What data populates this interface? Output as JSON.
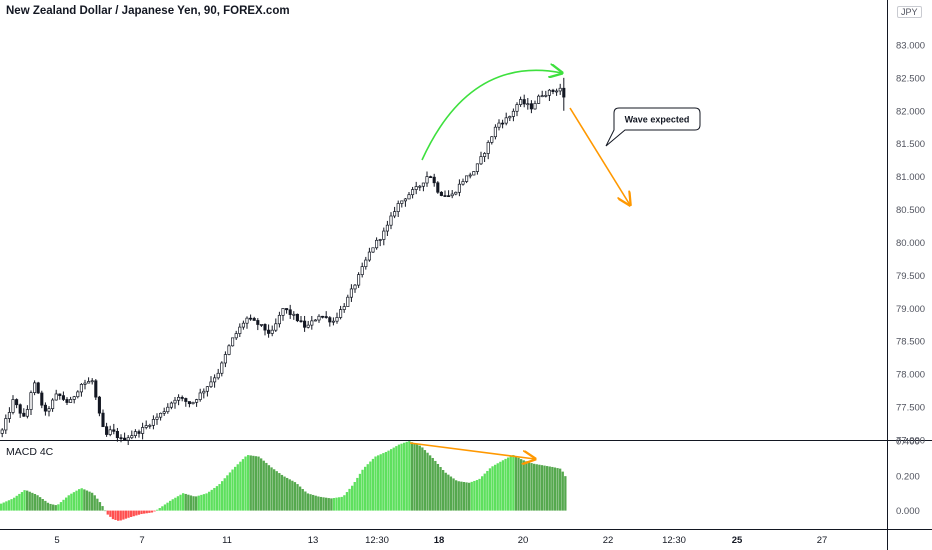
{
  "title": "New Zealand Dollar / Japanese Yen, 90, FOREX.com",
  "currency_badge": "JPY",
  "annotation": "Wave expected",
  "indicator_label": "MACD 4C",
  "colors": {
    "candle": "#131722",
    "macd_up_strong": "#5ee05e",
    "macd_up_weak": "#55a84e",
    "macd_down": "#ff5050",
    "curve_arrow": "#3ee03e",
    "orange": "#ff9800",
    "separator": "#131722"
  },
  "chart_data": [
    {
      "type": "candlestick",
      "title": "New Zealand Dollar / Japanese Yen, 90, FOREX.com",
      "y_ticks": [
        "83.000",
        "82.500",
        "82.000",
        "81.500",
        "81.000",
        "80.500",
        "80.000",
        "79.500",
        "79.000",
        "78.500",
        "78.000",
        "77.500",
        "77.000"
      ],
      "x_ticks": [
        "5",
        "7",
        "11",
        "13",
        "12:30",
        "18",
        "20",
        "22",
        "12:30",
        "25",
        "27"
      ],
      "ylim": [
        77.0,
        83.5
      ],
      "path": [
        [
          0,
          77.1
        ],
        [
          12,
          77.6
        ],
        [
          24,
          77.3
        ],
        [
          32,
          77.9
        ],
        [
          44,
          77.4
        ],
        [
          56,
          77.7
        ],
        [
          68,
          77.55
        ],
        [
          80,
          77.85
        ],
        [
          92,
          77.9
        ],
        [
          96,
          77.5
        ],
        [
          104,
          77.05
        ],
        [
          110,
          77.15
        ],
        [
          120,
          77.0
        ],
        [
          140,
          77.15
        ],
        [
          160,
          77.4
        ],
        [
          175,
          77.65
        ],
        [
          190,
          77.55
        ],
        [
          205,
          77.8
        ],
        [
          218,
          78.05
        ],
        [
          230,
          78.5
        ],
        [
          245,
          78.85
        ],
        [
          258,
          78.75
        ],
        [
          270,
          78.6
        ],
        [
          282,
          79.0
        ],
        [
          295,
          78.85
        ],
        [
          305,
          78.7
        ],
        [
          318,
          78.9
        ],
        [
          332,
          78.8
        ],
        [
          345,
          79.1
        ],
        [
          358,
          79.5
        ],
        [
          370,
          79.9
        ],
        [
          385,
          80.2
        ],
        [
          395,
          80.55
        ],
        [
          405,
          80.7
        ],
        [
          418,
          80.85
        ],
        [
          428,
          81.05
        ],
        [
          438,
          80.75
        ],
        [
          450,
          80.7
        ],
        [
          462,
          80.95
        ],
        [
          474,
          81.1
        ],
        [
          484,
          81.4
        ],
        [
          496,
          81.8
        ],
        [
          508,
          81.9
        ],
        [
          518,
          82.15
        ],
        [
          530,
          82.05
        ],
        [
          540,
          82.25
        ],
        [
          552,
          82.3
        ],
        [
          560,
          82.35
        ],
        [
          565,
          82.05
        ]
      ],
      "annotation": "Wave expected"
    },
    {
      "type": "bar",
      "title": "MACD 4C",
      "y_ticks": [
        "0.400",
        "0.200",
        "0.000"
      ],
      "ylim": [
        -0.1,
        0.4
      ],
      "path": [
        [
          0,
          0.04
        ],
        [
          12,
          0.07
        ],
        [
          24,
          0.12
        ],
        [
          36,
          0.09
        ],
        [
          48,
          0.04
        ],
        [
          56,
          0.03
        ],
        [
          68,
          0.09
        ],
        [
          80,
          0.13
        ],
        [
          92,
          0.1
        ],
        [
          100,
          0.04
        ],
        [
          106,
          -0.02
        ],
        [
          112,
          -0.05
        ],
        [
          118,
          -0.06
        ],
        [
          128,
          -0.04
        ],
        [
          140,
          -0.02
        ],
        [
          152,
          -0.01
        ],
        [
          160,
          0.02
        ],
        [
          170,
          0.06
        ],
        [
          182,
          0.1
        ],
        [
          194,
          0.08
        ],
        [
          206,
          0.1
        ],
        [
          218,
          0.15
        ],
        [
          232,
          0.24
        ],
        [
          246,
          0.32
        ],
        [
          258,
          0.31
        ],
        [
          270,
          0.25
        ],
        [
          282,
          0.2
        ],
        [
          295,
          0.16
        ],
        [
          306,
          0.1
        ],
        [
          318,
          0.08
        ],
        [
          330,
          0.07
        ],
        [
          342,
          0.08
        ],
        [
          352,
          0.15
        ],
        [
          362,
          0.24
        ],
        [
          374,
          0.31
        ],
        [
          386,
          0.34
        ],
        [
          398,
          0.38
        ],
        [
          408,
          0.4
        ],
        [
          420,
          0.37
        ],
        [
          432,
          0.3
        ],
        [
          444,
          0.22
        ],
        [
          456,
          0.17
        ],
        [
          468,
          0.16
        ],
        [
          478,
          0.18
        ],
        [
          490,
          0.25
        ],
        [
          502,
          0.29
        ],
        [
          512,
          0.32
        ],
        [
          522,
          0.29
        ],
        [
          532,
          0.27
        ],
        [
          542,
          0.26
        ],
        [
          552,
          0.25
        ],
        [
          560,
          0.24
        ],
        [
          565,
          0.19
        ]
      ]
    }
  ]
}
